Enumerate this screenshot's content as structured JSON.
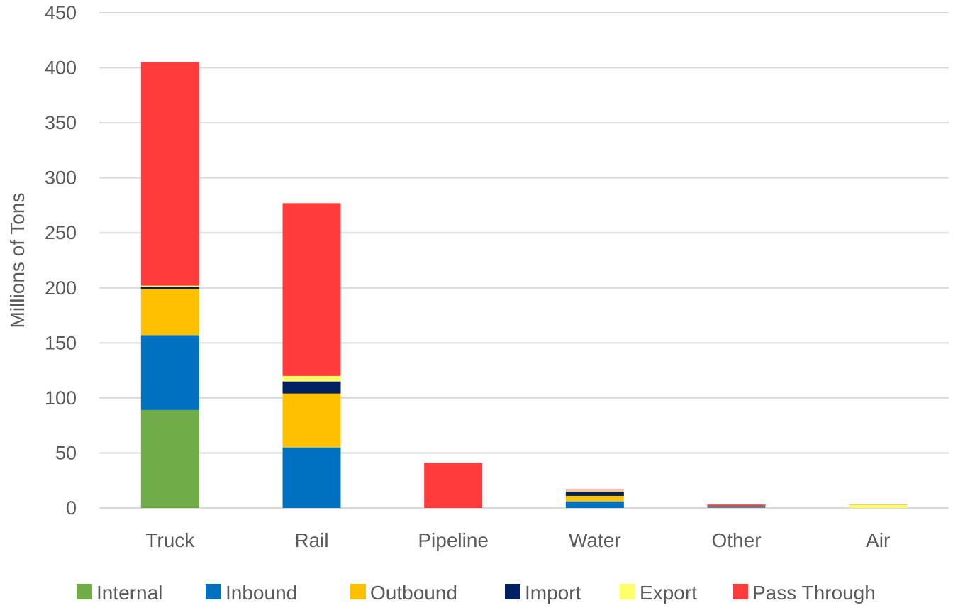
{
  "chart_data": {
    "type": "bar",
    "stacked": true,
    "ylabel": "Millions of Tons",
    "xlabel": "",
    "ylim": [
      0,
      450
    ],
    "yticks": [
      "0",
      "50",
      "100",
      "150",
      "200",
      "250",
      "300",
      "350",
      "400",
      "450"
    ],
    "grid": true,
    "legend_position": "bottom",
    "categories": [
      "Truck",
      "Rail",
      "Pipeline",
      "Water",
      "Other",
      "Air"
    ],
    "series": [
      {
        "name": "Internal",
        "color": "#70ad47",
        "values": [
          89,
          0,
          0,
          0,
          0,
          0
        ]
      },
      {
        "name": "Inbound",
        "color": "#0070c0",
        "values": [
          68,
          55,
          0,
          6,
          0.5,
          0
        ]
      },
      {
        "name": "Outbound",
        "color": "#ffc000",
        "values": [
          42,
          49,
          0,
          5,
          0.3,
          0
        ]
      },
      {
        "name": "Import",
        "color": "#002060",
        "values": [
          2,
          11,
          0,
          4,
          0.8,
          0
        ]
      },
      {
        "name": "Export",
        "color": "#ffff66",
        "values": [
          1,
          5,
          0,
          1,
          0.2,
          3
        ]
      },
      {
        "name": "Pass Through",
        "color": "#ff3b3b",
        "values": [
          203,
          157,
          41,
          1,
          1.3,
          0.2
        ]
      }
    ]
  }
}
